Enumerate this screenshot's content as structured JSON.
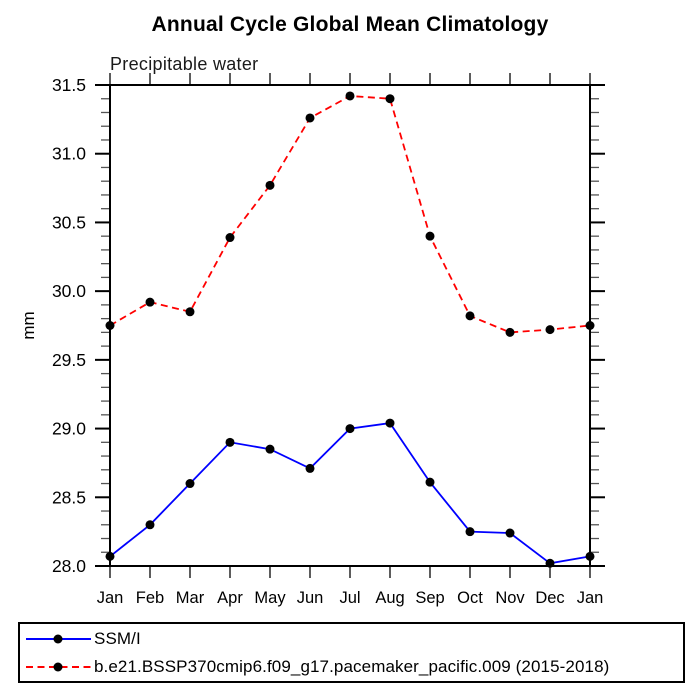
{
  "chart_data": {
    "type": "line",
    "title": "Annual Cycle Global Mean Climatology",
    "subtitle": "Precipitable water",
    "ylabel": "mm",
    "xlabel": "",
    "categories": [
      "Jan",
      "Feb",
      "Mar",
      "Apr",
      "May",
      "Jun",
      "Jul",
      "Aug",
      "Sep",
      "Oct",
      "Nov",
      "Dec",
      "Jan"
    ],
    "ylim": [
      28.0,
      31.5
    ],
    "ytick_step": 0.5,
    "yminor_step": 0.1,
    "ytick_labels": [
      "31.5",
      "31.0",
      "30.5",
      "30.0",
      "29.5",
      "29.0",
      "28.5",
      "28.0"
    ],
    "grid": false,
    "legend_position": "bottom-left-box",
    "frame_color": "#000000",
    "marker_shape": "circle",
    "series": [
      {
        "name": "SSM/I",
        "color": "#0000ff",
        "line_style": "solid",
        "marker_color": "#000000",
        "values": [
          28.07,
          28.3,
          28.6,
          28.9,
          28.85,
          28.71,
          29.0,
          29.04,
          28.61,
          28.25,
          28.24,
          28.02,
          28.07
        ]
      },
      {
        "name": "b.e21.BSSP370cmip6.f09_g17.pacemaker_pacific.009 (2015-2018)",
        "color": "#ff0000",
        "line_style": "dashed",
        "marker_color": "#000000",
        "values": [
          29.75,
          29.92,
          29.85,
          30.39,
          30.77,
          31.26,
          31.42,
          31.4,
          30.4,
          29.82,
          29.7,
          29.72,
          29.75
        ]
      }
    ]
  }
}
